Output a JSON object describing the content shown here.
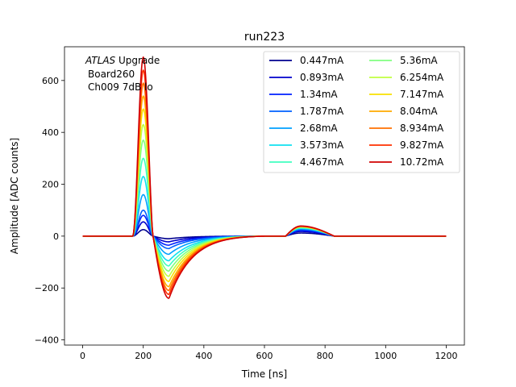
{
  "chart_data": {
    "type": "line",
    "title": "run223",
    "xlabel": "Time [ns]",
    "ylabel": "Amplitude [ADC counts]",
    "xlim": [
      -60,
      1260
    ],
    "ylim": [
      -420,
      730
    ],
    "xticks": [
      0,
      200,
      400,
      600,
      800,
      1000,
      1200
    ],
    "yticks": [
      -400,
      -200,
      0,
      200,
      400,
      600
    ],
    "grid": false,
    "legend_location": "top-right",
    "legend_columns": 2,
    "annotation": {
      "line1_italic": "ATLAS",
      "line1_rest": " Upgrade",
      "line2": "Board260",
      "line3": "Ch009 7dB lo"
    },
    "waveform_model": {
      "baseline_start_ns": 0,
      "baseline_end_ns": 1200,
      "pulse_start_ns": 165,
      "peak_ns": 200,
      "undershoot_ns": 285,
      "recovery_ns": 600,
      "reflection_start_ns": 670,
      "reflection_peak_ns": 720,
      "reflection_end_ns": 830
    },
    "series": [
      {
        "name": "0.447mA",
        "color": "#00008f",
        "peak": 25,
        "undershoot": -10,
        "reflection": 12
      },
      {
        "name": "0.893mA",
        "color": "#0000cc",
        "peak": 55,
        "undershoot": -22,
        "reflection": 18
      },
      {
        "name": "1.34mA",
        "color": "#0020ff",
        "peak": 80,
        "undershoot": -35,
        "reflection": 22
      },
      {
        "name": "1.787mA",
        "color": "#0060ff",
        "peak": 100,
        "undershoot": -48,
        "reflection": 25
      },
      {
        "name": "2.68mA",
        "color": "#00a0ff",
        "peak": 160,
        "undershoot": -70,
        "reflection": 28
      },
      {
        "name": "3.573mA",
        "color": "#10e0f0",
        "peak": 230,
        "undershoot": -95,
        "reflection": 30
      },
      {
        "name": "4.467mA",
        "color": "#40ffc0",
        "peak": 300,
        "undershoot": -115,
        "reflection": 32
      },
      {
        "name": "5.36mA",
        "color": "#80ff80",
        "peak": 370,
        "undershoot": -135,
        "reflection": 34
      },
      {
        "name": "6.254mA",
        "color": "#c0ff40",
        "peak": 430,
        "undershoot": -155,
        "reflection": 35
      },
      {
        "name": "7.147mA",
        "color": "#f8e000",
        "peak": 490,
        "undershoot": -175,
        "reflection": 36
      },
      {
        "name": "8.04mA",
        "color": "#ffaa00",
        "peak": 540,
        "undershoot": -195,
        "reflection": 37
      },
      {
        "name": "8.934mA",
        "color": "#ff7000",
        "peak": 590,
        "undershoot": -210,
        "reflection": 38
      },
      {
        "name": "9.827mA",
        "color": "#ff3000",
        "peak": 640,
        "undershoot": -225,
        "reflection": 38
      },
      {
        "name": "10.72mA",
        "color": "#d00000",
        "peak": 690,
        "undershoot": -240,
        "reflection": 39
      }
    ]
  }
}
